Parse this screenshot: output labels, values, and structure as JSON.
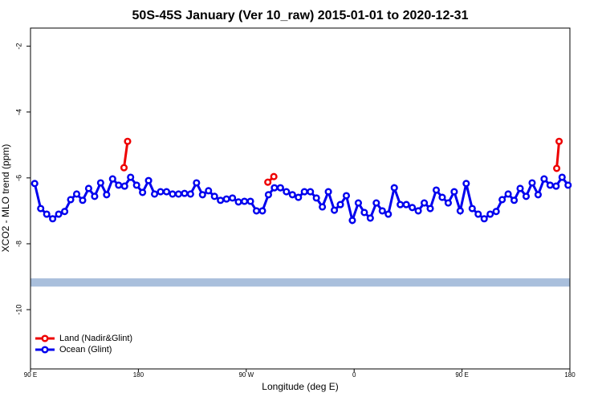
{
  "chart_data": {
    "type": "line",
    "title": "50S-45S January (Ver 10_raw)   2015-01-01 to 2020-12-31",
    "x_label": "Longitude (deg E)",
    "y_label": "XCO2 - MLO trend (ppm)",
    "xlim": [
      90,
      540
    ],
    "xticks": [
      {
        "value": 90,
        "label": "90 E"
      },
      {
        "value": 180,
        "label": "180"
      },
      {
        "value": 270,
        "label": "90 W"
      },
      {
        "value": 360,
        "label": "0"
      },
      {
        "value": 450,
        "label": "90 E"
      },
      {
        "value": 540,
        "label": "180"
      }
    ],
    "ylim": [
      -11.8,
      -1.45
    ],
    "yticks": [
      -2,
      -4,
      -6,
      -8,
      -10
    ],
    "band": [
      -9.3,
      -9.05
    ],
    "band_color": "#a9bfdc",
    "legend": "bottom-left",
    "series": [
      {
        "name": "Land (Nadir&Glint)",
        "color": "#ee0000",
        "x": [
          168,
          171,
          230,
          288,
          293,
          410,
          529,
          531
        ],
        "values": [
          -5.69,
          -4.89,
          null,
          -6.13,
          -5.96,
          null,
          -5.71,
          -4.89
        ]
      },
      {
        "name": "Ocean (Glint)",
        "color": "#0000ee",
        "x": [
          93.5,
          98.5,
          103.5,
          108.5,
          113.5,
          118.5,
          123.5,
          128.5,
          133.5,
          138.5,
          143.5,
          148.5,
          153.5,
          158.5,
          163.5,
          168.5,
          173.5,
          178.5,
          183.5,
          188.5,
          193.5,
          198.5,
          203.5,
          208.5,
          213.5,
          218.5,
          223.5,
          228.5,
          233.5,
          238.5,
          243.5,
          248.5,
          253.5,
          258.5,
          263.5,
          268.5,
          273.5,
          278.5,
          283.5,
          288.5,
          293.5,
          298.5,
          303.5,
          308.5,
          313.5,
          318.5,
          323.5,
          328.5,
          333.5,
          338.5,
          343.5,
          348.5,
          353.5,
          358.5,
          363.5,
          368.5,
          373.5,
          378.5,
          383.5,
          388.5,
          393.5,
          398.5,
          403.5,
          408.5,
          413.5,
          418.5,
          423.5,
          428.5,
          433.5,
          438.5,
          443.5,
          448.5,
          453.5,
          458.5,
          463.5,
          468.5,
          473.5,
          478.5,
          483.5,
          488.5,
          493.5,
          498.5,
          503.5,
          508.5,
          513.5,
          518.5,
          523.5,
          528.5,
          533.5,
          538.5
        ],
        "values": [
          -6.17,
          -6.93,
          -7.1,
          -7.24,
          -7.1,
          -7.02,
          -6.66,
          -6.49,
          -6.68,
          -6.32,
          -6.56,
          -6.15,
          -6.51,
          -6.03,
          -6.22,
          -6.25,
          -5.98,
          -6.22,
          -6.44,
          -6.08,
          -6.49,
          -6.42,
          -6.42,
          -6.49,
          -6.49,
          -6.47,
          -6.49,
          -6.15,
          -6.51,
          -6.39,
          -6.56,
          -6.68,
          -6.64,
          -6.61,
          -6.73,
          -6.71,
          -6.71,
          -7.0,
          -7.0,
          -6.51,
          -6.3,
          -6.3,
          -6.42,
          -6.51,
          -6.59,
          -6.42,
          -6.42,
          -6.61,
          -6.88,
          -6.42,
          -6.98,
          -6.81,
          -6.54,
          -7.29,
          -6.76,
          -7.05,
          -7.22,
          -6.76,
          -7.0,
          -7.1,
          -6.3,
          -6.81,
          -6.81,
          -6.9,
          -7.0,
          -6.76,
          -6.93,
          -6.37,
          -6.59,
          -6.76,
          -6.42,
          -7.0,
          -6.17,
          -6.93,
          -7.1,
          -7.24,
          -7.1,
          -7.02,
          -6.66,
          -6.49,
          -6.68,
          -6.32,
          -6.56,
          -6.15,
          -6.51,
          -6.03,
          -6.22,
          -6.25,
          -5.98,
          -6.22
        ]
      }
    ]
  }
}
